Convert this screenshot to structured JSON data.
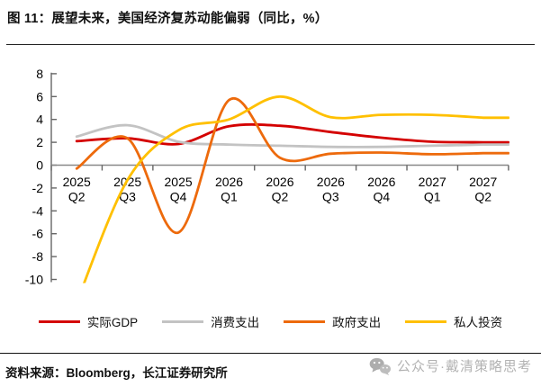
{
  "page": {
    "figure_title": "图 11：展望未来，美国经济复苏动能偏弱（同比，%）",
    "source_note": "资料来源：Bloomberg，长江证券研究所",
    "watermark_text": "公众号·戴清策略思考"
  },
  "chart_data": {
    "type": "line",
    "smooth": true,
    "title": "展望未来，美国经济复苏动能偏弱（同比，%）",
    "categories": [
      "2025 Q2",
      "2025 Q3",
      "2025 Q4",
      "2026 Q1",
      "2026 Q2",
      "2026 Q3",
      "2026 Q4",
      "2027 Q1",
      "2027 Q2"
    ],
    "series": [
      {
        "name": "实际GDP",
        "color": "#d40000",
        "values": [
          2.1,
          2.35,
          1.85,
          3.4,
          3.45,
          2.9,
          2.4,
          2.05,
          2.0
        ]
      },
      {
        "name": "消费支出",
        "color": "#c3c3c3",
        "values": [
          2.5,
          3.5,
          2.05,
          1.8,
          1.7,
          1.6,
          1.6,
          1.7,
          1.8
        ]
      },
      {
        "name": "政府支出",
        "color": "#ed6a0c",
        "values": [
          -0.3,
          2.35,
          -5.9,
          5.7,
          0.65,
          1.0,
          1.1,
          0.95,
          1.05
        ]
      },
      {
        "name": "私人投资",
        "color": "#ffc000",
        "values": [
          -12,
          -1.3,
          3.05,
          4.0,
          6.0,
          4.2,
          4.4,
          4.4,
          4.15
        ],
        "note": "first point below visible axis range (clipped at -10)"
      }
    ],
    "ylim": [
      -10,
      8
    ],
    "ytick_step": 2,
    "grid": false,
    "legend_position": "bottom",
    "axis_color": "#666666",
    "zero_line_color": "#888888"
  }
}
